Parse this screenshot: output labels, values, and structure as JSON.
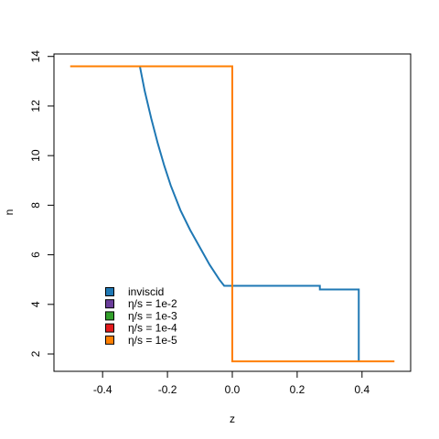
{
  "chart_data": {
    "type": "line",
    "title": "",
    "xlabel": "z",
    "ylabel": "n",
    "xlim": [
      -0.55,
      0.55
    ],
    "ylim": [
      1.3,
      14.1
    ],
    "xticks": [
      -0.4,
      -0.2,
      0.0,
      0.2,
      0.4
    ],
    "xtick_labels": [
      "-0.4",
      "-0.2",
      "0.0",
      "0.2",
      "0.4"
    ],
    "yticks": [
      2,
      4,
      6,
      8,
      10,
      12,
      14
    ],
    "ytick_labels": [
      "2",
      "4",
      "6",
      "8",
      "10",
      "12",
      "14"
    ],
    "grid": false,
    "legend_position": "bottom-left",
    "series": [
      {
        "name": "inviscid",
        "color": "#1f78b4",
        "points": [
          [
            -0.285,
            13.6
          ],
          [
            -0.27,
            12.6
          ],
          [
            -0.25,
            11.5
          ],
          [
            -0.23,
            10.5
          ],
          [
            -0.21,
            9.6
          ],
          [
            -0.19,
            8.8
          ],
          [
            -0.16,
            7.8
          ],
          [
            -0.13,
            7.0
          ],
          [
            -0.1,
            6.3
          ],
          [
            -0.07,
            5.6
          ],
          [
            -0.04,
            5.0
          ],
          [
            -0.025,
            4.75
          ],
          [
            0.27,
            4.75
          ],
          [
            0.27,
            4.6
          ],
          [
            0.39,
            4.6
          ],
          [
            0.39,
            1.7
          ]
        ]
      },
      {
        "name": "η/s = 1e-2",
        "color": "#6a3d9a",
        "points": []
      },
      {
        "name": "η/s = 1e-3",
        "color": "#33a02c",
        "points": []
      },
      {
        "name": "η/s = 1e-4",
        "color": "#e31a1c",
        "points": []
      },
      {
        "name": "η/s = 1e-5",
        "color": "#ff7f00",
        "points": [
          [
            -0.5,
            13.6
          ],
          [
            0.0,
            13.6
          ],
          [
            0.0,
            1.7
          ],
          [
            0.5,
            1.7
          ]
        ]
      }
    ]
  }
}
